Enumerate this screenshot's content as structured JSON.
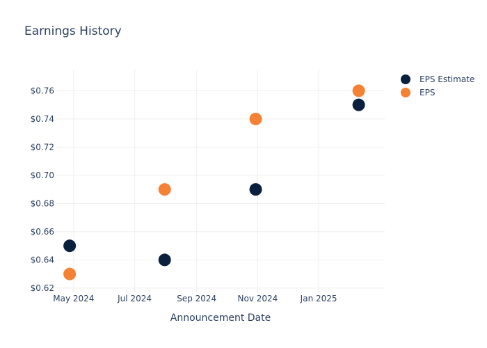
{
  "chart_data": {
    "type": "scatter",
    "title": "Earnings History",
    "xlabel": "Announcement Date",
    "ylabel": "",
    "x_ticks": [
      {
        "date": "2024-05-01",
        "label": "May 2024"
      },
      {
        "date": "2024-07-01",
        "label": "Jul 2024"
      },
      {
        "date": "2024-09-01",
        "label": "Sep 2024"
      },
      {
        "date": "2024-11-01",
        "label": "Nov 2024"
      },
      {
        "date": "2025-01-01",
        "label": "Jan 2025"
      }
    ],
    "y_ticks": [
      0.62,
      0.64,
      0.66,
      0.68,
      0.7,
      0.72,
      0.74,
      0.76
    ],
    "y_tick_format": "$0.00",
    "xlim": [
      "2024-04-13",
      "2025-03-08"
    ],
    "ylim": [
      0.617,
      0.775
    ],
    "grid": true,
    "legend_position": "top-right",
    "series": [
      {
        "name": "EPS Estimate",
        "color": "#0b1f3f",
        "points": [
          {
            "x": "2024-04-27",
            "y": 0.65
          },
          {
            "x": "2024-07-31",
            "y": 0.64
          },
          {
            "x": "2024-10-30",
            "y": 0.69
          },
          {
            "x": "2025-02-10",
            "y": 0.75
          }
        ]
      },
      {
        "name": "EPS",
        "color": "#f58234",
        "points": [
          {
            "x": "2024-04-27",
            "y": 0.63
          },
          {
            "x": "2024-07-31",
            "y": 0.69
          },
          {
            "x": "2024-10-30",
            "y": 0.74
          },
          {
            "x": "2025-02-10",
            "y": 0.76
          }
        ]
      }
    ]
  }
}
